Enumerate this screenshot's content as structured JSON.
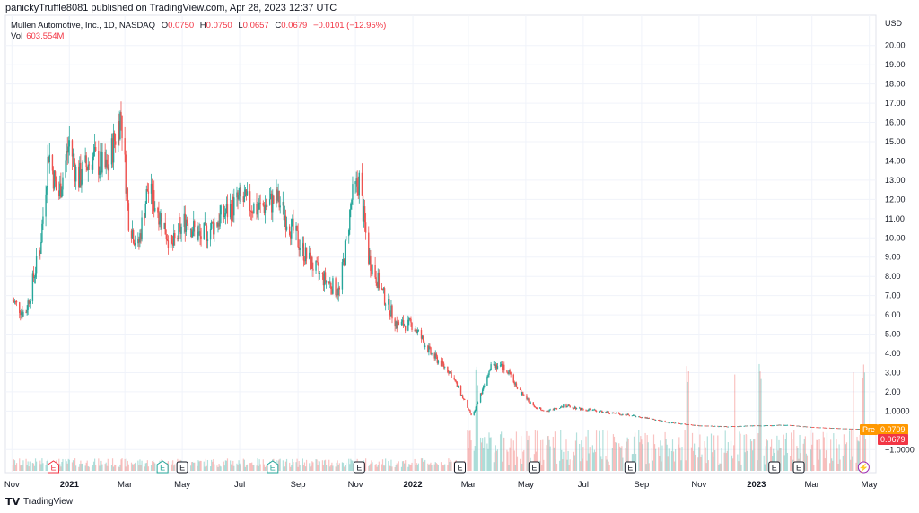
{
  "header": {
    "publish_line": "panickyTruffle8081 published on TradingView.com, Apr 28, 2023 12:37 UTC"
  },
  "legend": {
    "symbol": "Mullen Automotive, Inc., 1D, NASDAQ",
    "open_label": "O",
    "open": "0.0750",
    "high_label": "H",
    "high": "0.0750",
    "low_label": "L",
    "low": "0.0657",
    "close_label": "C",
    "close": "0.0679",
    "change": "−0.0101 (−12.95%)",
    "vol_label": "Vol",
    "vol": "603.554M"
  },
  "footer": {
    "brand": "TradingView"
  },
  "badges": {
    "pre_label": "Pre",
    "pre_value": "0.0709",
    "last_value": "0.0679"
  },
  "colors": {
    "up": "#26a69a",
    "down": "#ef5350",
    "grid": "#f0f3fa",
    "pre": "#ff9800",
    "last": "#f23645"
  },
  "chart_data": {
    "type": "candlestick",
    "currency_label": "USD",
    "ylim": [
      -1.5,
      21.2
    ],
    "y_ticks": [
      "20.00",
      "19.00",
      "18.00",
      "17.00",
      "16.00",
      "15.00",
      "14.00",
      "13.00",
      "12.00",
      "11.00",
      "10.00",
      "9.00",
      "8.00",
      "7.00",
      "6.00",
      "5.00",
      "4.00",
      "3.00",
      "2.00",
      "1.0000",
      "−1.0000"
    ],
    "x_ticks": [
      "Nov",
      "2021",
      "Mar",
      "May",
      "Jul",
      "Sep",
      "Nov",
      "2022",
      "Mar",
      "May",
      "Jul",
      "Sep",
      "Nov",
      "2023",
      "Mar",
      "May"
    ],
    "last_price": 0.0679,
    "pre_market_price": 0.0709,
    "price_path": [
      {
        "date": "2020-11-01",
        "close": 6.8
      },
      {
        "date": "2020-11-15",
        "close": 6.0
      },
      {
        "date": "2020-12-01",
        "close": 9.5
      },
      {
        "date": "2020-12-10",
        "close": 14.5
      },
      {
        "date": "2020-12-20",
        "close": 12.0
      },
      {
        "date": "2021-01-01",
        "close": 15.0
      },
      {
        "date": "2021-01-10",
        "close": 13.0
      },
      {
        "date": "2021-01-25",
        "close": 14.2
      },
      {
        "date": "2021-02-10",
        "close": 13.5
      },
      {
        "date": "2021-02-25",
        "close": 16.5
      },
      {
        "date": "2021-03-05",
        "close": 11.0
      },
      {
        "date": "2021-03-15",
        "close": 9.5
      },
      {
        "date": "2021-03-25",
        "close": 12.5
      },
      {
        "date": "2021-04-05",
        "close": 11.5
      },
      {
        "date": "2021-04-20",
        "close": 9.5
      },
      {
        "date": "2021-05-05",
        "close": 11.0
      },
      {
        "date": "2021-05-20",
        "close": 10.0
      },
      {
        "date": "2021-06-10",
        "close": 11.0
      },
      {
        "date": "2021-07-01",
        "close": 12.0
      },
      {
        "date": "2021-07-20",
        "close": 11.5
      },
      {
        "date": "2021-08-10",
        "close": 12.0
      },
      {
        "date": "2021-08-25",
        "close": 10.5
      },
      {
        "date": "2021-09-10",
        "close": 9.0
      },
      {
        "date": "2021-09-25",
        "close": 8.0
      },
      {
        "date": "2021-10-15",
        "close": 7.2
      },
      {
        "date": "2021-10-28",
        "close": 12.0
      },
      {
        "date": "2021-11-05",
        "close": 13.0
      },
      {
        "date": "2021-11-15",
        "close": 9.0
      },
      {
        "date": "2021-12-01",
        "close": 7.0
      },
      {
        "date": "2021-12-15",
        "close": 5.5
      },
      {
        "date": "2022-01-01",
        "close": 5.5
      },
      {
        "date": "2022-01-20",
        "close": 4.0
      },
      {
        "date": "2022-02-10",
        "close": 3.0
      },
      {
        "date": "2022-02-25",
        "close": 1.5
      },
      {
        "date": "2022-03-05",
        "close": 0.7
      },
      {
        "date": "2022-03-15",
        "close": 2.0
      },
      {
        "date": "2022-03-25",
        "close": 3.5
      },
      {
        "date": "2022-04-10",
        "close": 3.2
      },
      {
        "date": "2022-04-25",
        "close": 2.0
      },
      {
        "date": "2022-05-10",
        "close": 1.2
      },
      {
        "date": "2022-05-25",
        "close": 1.0
      },
      {
        "date": "2022-06-10",
        "close": 1.3
      },
      {
        "date": "2022-07-01",
        "close": 1.1
      },
      {
        "date": "2022-08-01",
        "close": 0.9
      },
      {
        "date": "2022-09-01",
        "close": 0.7
      },
      {
        "date": "2022-10-01",
        "close": 0.4
      },
      {
        "date": "2022-11-01",
        "close": 0.25
      },
      {
        "date": "2022-12-01",
        "close": 0.2
      },
      {
        "date": "2023-01-01",
        "close": 0.25
      },
      {
        "date": "2023-02-01",
        "close": 0.28
      },
      {
        "date": "2023-03-01",
        "close": 0.17
      },
      {
        "date": "2023-04-01",
        "close": 0.1
      },
      {
        "date": "2023-04-27",
        "close": 0.0679
      }
    ],
    "events": [
      {
        "date": "2020-12-15",
        "label": "E",
        "kind": "upcoming-red"
      },
      {
        "date": "2021-04-10",
        "label": "E",
        "kind": "green"
      },
      {
        "date": "2021-05-01",
        "label": "E",
        "kind": "gray"
      },
      {
        "date": "2021-08-05",
        "label": "E",
        "kind": "green"
      },
      {
        "date": "2021-11-05",
        "label": "E",
        "kind": "gray"
      },
      {
        "date": "2022-02-20",
        "label": "E",
        "kind": "gray"
      },
      {
        "date": "2022-05-10",
        "label": "E",
        "kind": "gray"
      },
      {
        "date": "2022-08-20",
        "label": "E",
        "kind": "gray"
      },
      {
        "date": "2023-01-20",
        "label": "E",
        "kind": "gray"
      },
      {
        "date": "2023-02-15",
        "label": "E",
        "kind": "gray"
      },
      {
        "date": "2023-04-25",
        "label": "⚡",
        "kind": "purple"
      }
    ],
    "volume": {
      "visible": true,
      "spike_dates": [
        "2022-03-10",
        "2022-10-20",
        "2022-12-10",
        "2023-01-05",
        "2023-04-15",
        "2023-04-25"
      ]
    }
  }
}
